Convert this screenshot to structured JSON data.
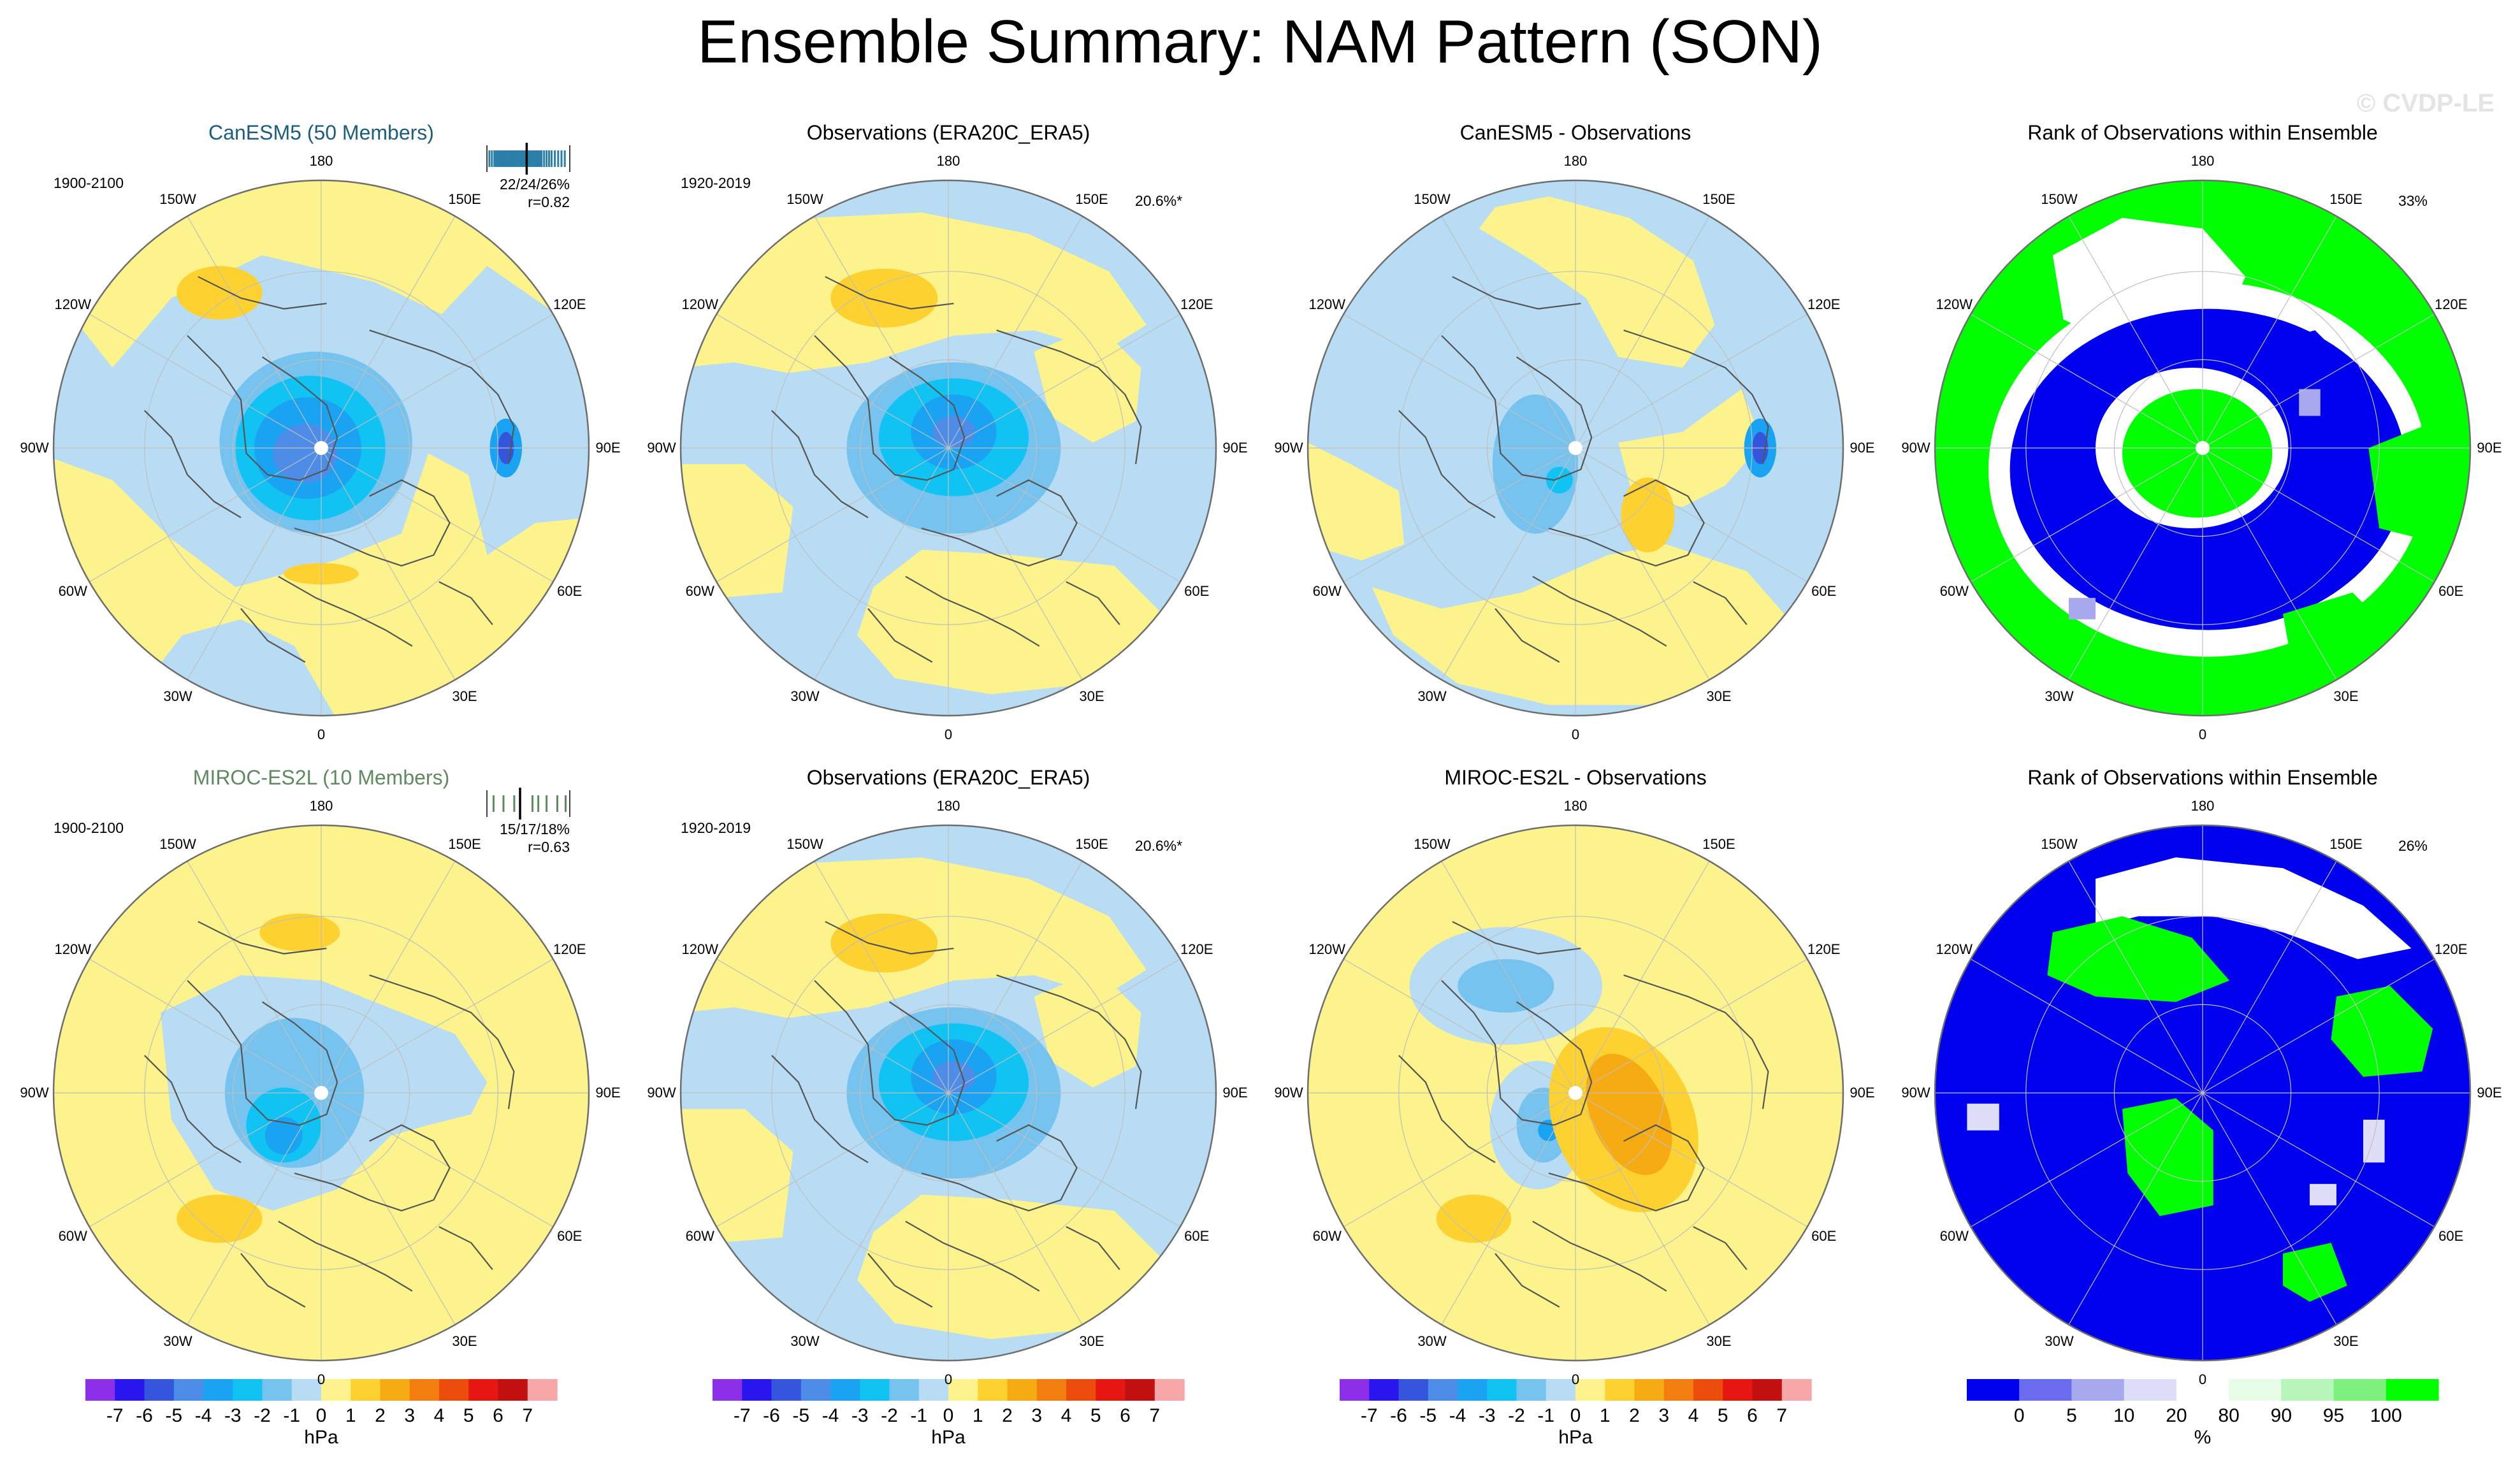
{
  "title": "Ensemble Summary: NAM Pattern (SON)",
  "watermark": "© CVDP-LE",
  "colors": {
    "lbar": [
      "#8c2fe6",
      "#2a16ee",
      "#3555dd",
      "#4d8de8",
      "#1aa3f2",
      "#10c3f3",
      "#76c3ef",
      "#b7dcf3",
      "#fcf38c",
      "#fcd130",
      "#f7ab13",
      "#f17e0e",
      "#ed4d0c",
      "#e61610",
      "#c0100f",
      "#f7a7a7"
    ],
    "rank": [
      "#0000ee",
      "#6b6bf0",
      "#a8a8ee",
      "#dedef8",
      "#ffffff",
      "#e6fce6",
      "#b8f5b8",
      "#7ef07e",
      "#00ff00"
    ],
    "land": "#9e9e9e",
    "title_canesm": "#1b5e7f",
    "title_miroc": "#5f8a5f"
  },
  "chart_data": [
    {
      "type": "polar-map",
      "id": "canesm5-pattern",
      "row": 0,
      "col": 0,
      "field": "canesm5",
      "title": "CanESM5 (50 Members)",
      "period": "1900-2100",
      "stat_lines": [
        "22/24/26%",
        "r=0.82"
      ],
      "ticks": [
        0.03,
        0.06,
        0.09,
        0.11,
        0.13,
        0.15,
        0.17,
        0.19,
        0.2,
        0.22,
        0.24,
        0.25,
        0.27,
        0.29,
        0.3,
        0.32,
        0.33,
        0.34,
        0.36,
        0.37,
        0.38,
        0.4,
        0.41,
        0.42,
        0.43,
        0.45,
        0.47,
        0.49,
        0.51,
        0.52,
        0.53,
        0.55,
        0.56,
        0.58,
        0.59,
        0.6,
        0.62,
        0.64,
        0.66,
        0.69,
        0.72,
        0.75,
        0.78,
        0.82,
        0.86,
        0.9,
        0.94
      ],
      "median_tick": 0.48,
      "longitude_labels": [
        "180",
        "150E",
        "120E",
        "90E",
        "60E",
        "30E",
        "0",
        "30W",
        "60W",
        "90W",
        "120W",
        "150W"
      ],
      "units": "hPa"
    },
    {
      "type": "polar-map",
      "id": "obs-pattern-top",
      "row": 0,
      "col": 1,
      "field": "obs",
      "title": "Observations (ERA20C_ERA5)",
      "period": "1920-2019",
      "variance": "20.6%*",
      "longitude_labels": [
        "180",
        "150E",
        "120E",
        "90E",
        "60E",
        "30E",
        "0",
        "30W",
        "60W",
        "90W",
        "120W",
        "150W"
      ],
      "units": "hPa"
    },
    {
      "type": "polar-map",
      "id": "canesm5-diff",
      "row": 0,
      "col": 2,
      "field": "diff1",
      "title": "CanESM5 - Observations",
      "longitude_labels": [
        "180",
        "150E",
        "120E",
        "90E",
        "60E",
        "30E",
        "0",
        "30W",
        "60W",
        "90W",
        "120W",
        "150W"
      ],
      "units": "hPa"
    },
    {
      "type": "polar-map",
      "id": "rank-top",
      "row": 0,
      "col": 3,
      "field": "rank1",
      "title": "Rank of Observations within Ensemble",
      "variance": "33%",
      "longitude_labels": [
        "180",
        "150E",
        "120E",
        "90E",
        "60E",
        "30E",
        "0",
        "30W",
        "60W",
        "90W",
        "120W",
        "150W"
      ],
      "units": "%"
    },
    {
      "type": "polar-map",
      "id": "miroc-pattern",
      "row": 1,
      "col": 0,
      "field": "miroc",
      "title": "MIROC-ES2L (10 Members)",
      "period": "1900-2100",
      "stat_lines": [
        "15/17/18%",
        "r=0.63"
      ],
      "ticks": [
        0.08,
        0.2,
        0.33,
        0.4,
        0.55,
        0.62,
        0.72,
        0.85,
        0.95
      ],
      "median_tick": 0.4,
      "longitude_labels": [
        "180",
        "150E",
        "120E",
        "90E",
        "60E",
        "30E",
        "0",
        "30W",
        "60W",
        "90W",
        "120W",
        "150W"
      ],
      "units": "hPa"
    },
    {
      "type": "polar-map",
      "id": "obs-pattern-bottom",
      "row": 1,
      "col": 1,
      "field": "obs",
      "title": "Observations (ERA20C_ERA5)",
      "period": "1920-2019",
      "variance": "20.6%*",
      "longitude_labels": [
        "180",
        "150E",
        "120E",
        "90E",
        "60E",
        "30E",
        "0",
        "30W",
        "60W",
        "90W",
        "120W",
        "150W"
      ],
      "units": "hPa"
    },
    {
      "type": "polar-map",
      "id": "miroc-diff",
      "row": 1,
      "col": 2,
      "field": "diff2",
      "title": "MIROC-ES2L - Observations",
      "longitude_labels": [
        "180",
        "150E",
        "120E",
        "90E",
        "60E",
        "30E",
        "0",
        "30W",
        "60W",
        "90W",
        "120W",
        "150W"
      ],
      "units": "hPa"
    },
    {
      "type": "polar-map",
      "id": "rank-bottom",
      "row": 1,
      "col": 3,
      "field": "rank2",
      "title": "Rank of Observations within Ensemble",
      "variance": "26%",
      "longitude_labels": [
        "180",
        "150E",
        "120E",
        "90E",
        "60E",
        "30E",
        "0",
        "30W",
        "60W",
        "90W",
        "120W",
        "150W"
      ],
      "units": "%"
    }
  ],
  "colorbars": [
    {
      "id": "cbar-1",
      "col": 0,
      "palette": "lbar",
      "labels": [
        "-7",
        "-6",
        "-5",
        "-4",
        "-3",
        "-2",
        "-1",
        "0",
        "1",
        "2",
        "3",
        "4",
        "5",
        "6",
        "7"
      ],
      "units": "hPa"
    },
    {
      "id": "cbar-2",
      "col": 1,
      "palette": "lbar",
      "labels": [
        "-7",
        "-6",
        "-5",
        "-4",
        "-3",
        "-2",
        "-1",
        "0",
        "1",
        "2",
        "3",
        "4",
        "5",
        "6",
        "7"
      ],
      "units": "hPa"
    },
    {
      "id": "cbar-3",
      "col": 2,
      "palette": "lbar",
      "labels": [
        "-7",
        "-6",
        "-5",
        "-4",
        "-3",
        "-2",
        "-1",
        "0",
        "1",
        "2",
        "3",
        "4",
        "5",
        "6",
        "7"
      ],
      "units": "hPa"
    },
    {
      "id": "cbar-4",
      "col": 3,
      "palette": "rank",
      "labels": [
        "0",
        "5",
        "10",
        "20",
        "80",
        "90",
        "95",
        "100"
      ],
      "units": "%"
    }
  ]
}
